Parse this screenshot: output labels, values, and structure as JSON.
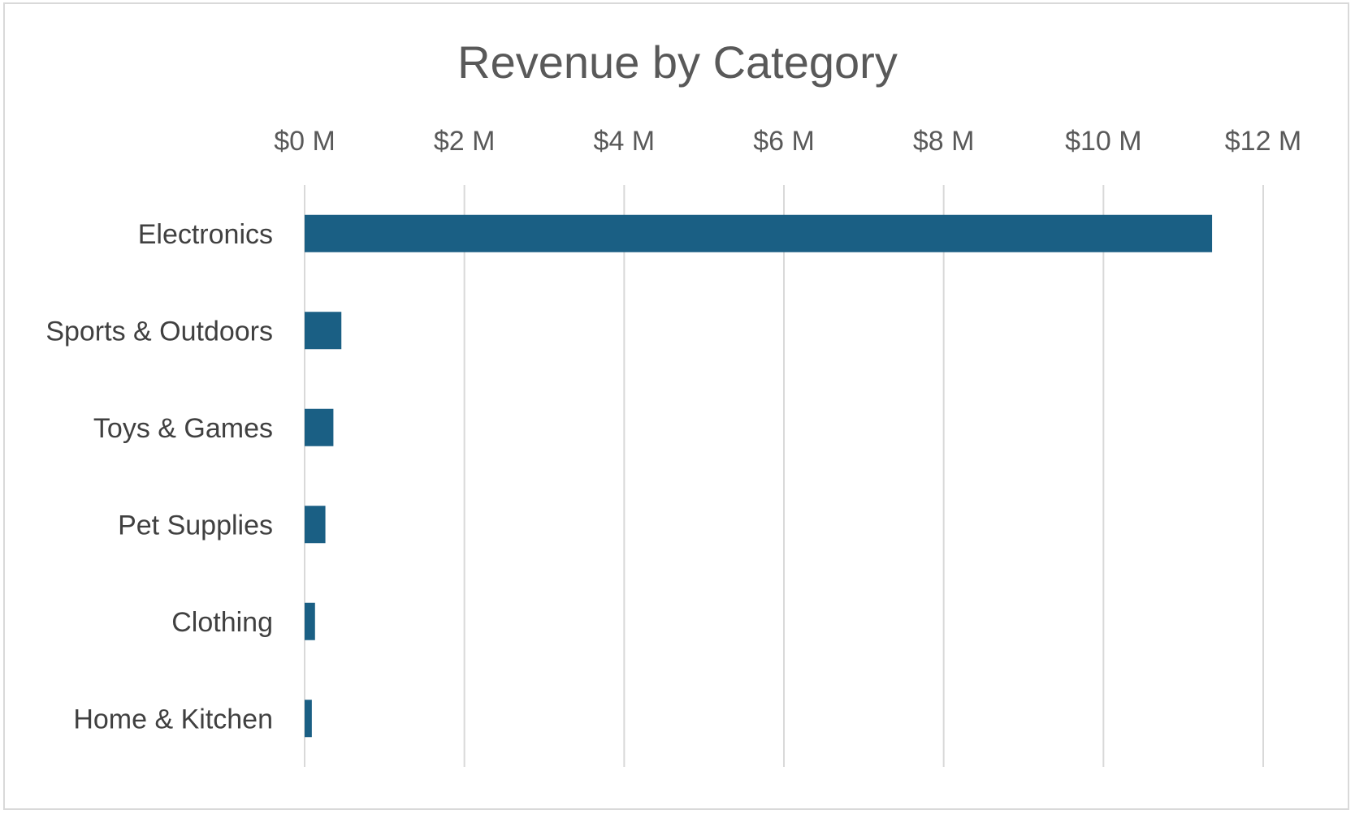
{
  "chart_data": {
    "type": "bar",
    "orientation": "horizontal",
    "title": "Revenue by Category",
    "xlabel": "",
    "ylabel": "",
    "categories": [
      "Electronics",
      "Sports & Outdoors",
      "Toys & Games",
      "Pet Supplies",
      "Clothing",
      "Home & Kitchen"
    ],
    "values": [
      11.36,
      0.46,
      0.36,
      0.26,
      0.13,
      0.09
    ],
    "value_unit": "$ M",
    "xlim": [
      0,
      12
    ],
    "x_ticks": [
      0,
      2,
      4,
      6,
      8,
      10,
      12
    ],
    "x_tick_labels": [
      "$0 M",
      "$2 M",
      "$4 M",
      "$6 M",
      "$8 M",
      "$10 M",
      "$12 M"
    ],
    "x_axis_position": "top",
    "grid": true,
    "legend": "none",
    "colors": {
      "bar": "#1a5f84",
      "gridline": "#d9d9d9",
      "text": "#595959",
      "border": "#d9d9d9"
    }
  }
}
